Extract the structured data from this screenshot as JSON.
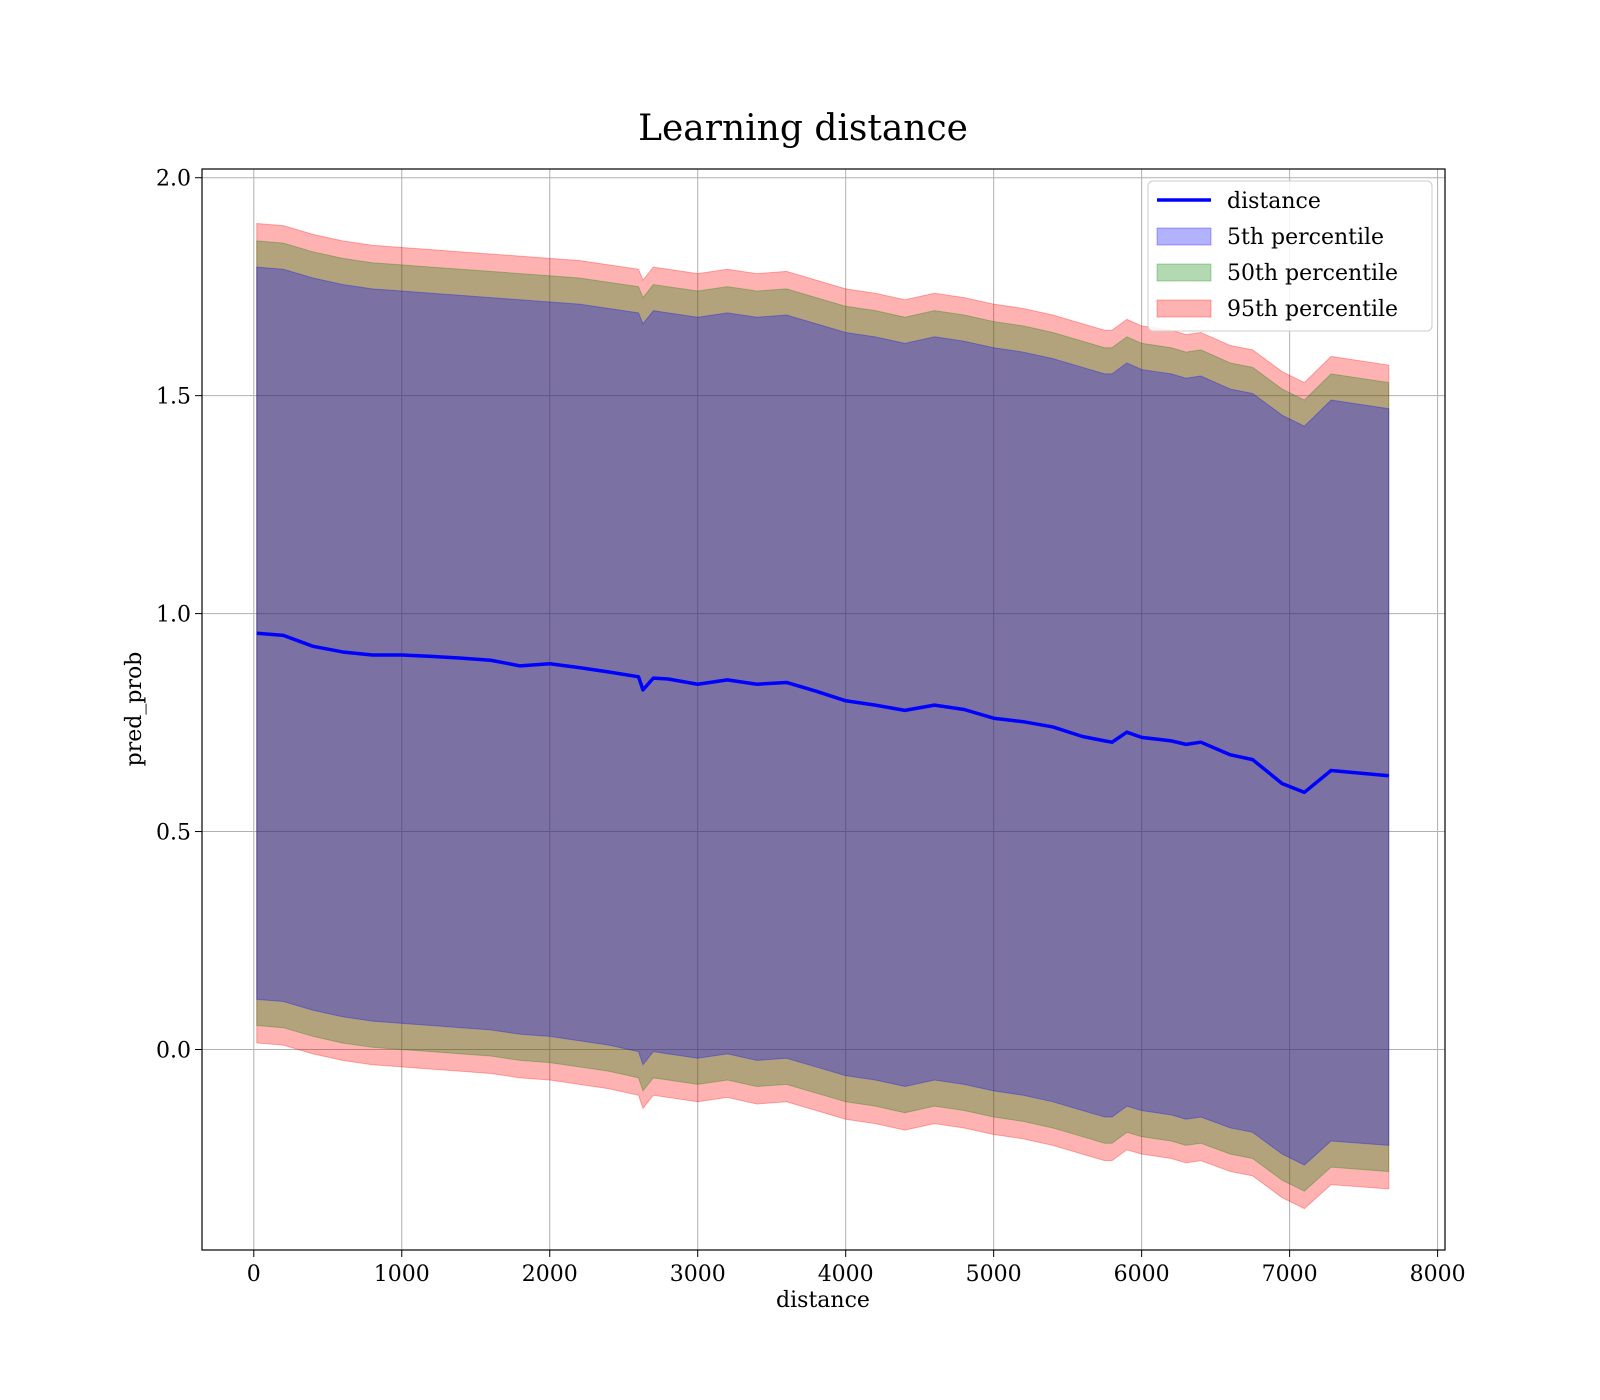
{
  "chart_data": {
    "type": "line",
    "title": "Learning distance",
    "xlabel": "distance",
    "ylabel": "pred_prob",
    "xlim": [
      -350,
      8050
    ],
    "ylim": [
      -0.46,
      2.02
    ],
    "xticks": [
      0,
      1000,
      2000,
      3000,
      4000,
      5000,
      6000,
      7000,
      8000
    ],
    "yticks": [
      0.0,
      0.5,
      1.0,
      1.5,
      2.0
    ],
    "xtick_labels": [
      "0",
      "1000",
      "2000",
      "3000",
      "4000",
      "5000",
      "6000",
      "7000",
      "8000"
    ],
    "ytick_labels": [
      "0.0",
      "0.5",
      "1.0",
      "1.5",
      "2.0"
    ],
    "grid": true,
    "legend_position": "top-right",
    "legend": [
      "distance",
      "5th percentile",
      "50th percentile",
      "95th percentile"
    ],
    "x": [
      20,
      200,
      400,
      600,
      800,
      1000,
      1200,
      1400,
      1600,
      1800,
      2000,
      2200,
      2400,
      2600,
      2630,
      2700,
      2800,
      3000,
      3200,
      3400,
      3600,
      3800,
      4000,
      4200,
      4400,
      4600,
      4800,
      5000,
      5200,
      5400,
      5600,
      5750,
      5800,
      5900,
      6000,
      6100,
      6200,
      6300,
      6400,
      6600,
      6750,
      6950,
      7100,
      7280,
      7670
    ],
    "series": [
      {
        "name": "distance",
        "color": "#0000ff",
        "values": [
          0.955,
          0.95,
          0.925,
          0.912,
          0.905,
          0.905,
          0.902,
          0.898,
          0.893,
          0.88,
          0.885,
          0.876,
          0.866,
          0.855,
          0.825,
          0.852,
          0.85,
          0.838,
          0.848,
          0.838,
          0.842,
          0.822,
          0.8,
          0.79,
          0.778,
          0.79,
          0.78,
          0.76,
          0.752,
          0.74,
          0.718,
          0.708,
          0.705,
          0.728,
          0.716,
          0.712,
          0.708,
          0.7,
          0.705,
          0.676,
          0.665,
          0.61,
          0.59,
          0.64,
          0.628
        ]
      },
      {
        "name": "5th percentile",
        "color": "#0000ff",
        "lower": [
          0.115,
          0.11,
          0.09,
          0.075,
          0.065,
          0.06,
          0.055,
          0.05,
          0.045,
          0.035,
          0.03,
          0.02,
          0.01,
          -0.005,
          -0.035,
          -0.005,
          -0.01,
          -0.02,
          -0.01,
          -0.025,
          -0.02,
          -0.04,
          -0.06,
          -0.07,
          -0.085,
          -0.07,
          -0.08,
          -0.095,
          -0.105,
          -0.12,
          -0.14,
          -0.155,
          -0.155,
          -0.13,
          -0.14,
          -0.145,
          -0.15,
          -0.16,
          -0.155,
          -0.18,
          -0.19,
          -0.24,
          -0.265,
          -0.21,
          -0.22
        ],
        "upper": [
          1.795,
          1.79,
          1.77,
          1.755,
          1.745,
          1.74,
          1.735,
          1.73,
          1.725,
          1.72,
          1.715,
          1.71,
          1.7,
          1.69,
          1.665,
          1.695,
          1.69,
          1.68,
          1.69,
          1.68,
          1.685,
          1.665,
          1.645,
          1.635,
          1.62,
          1.635,
          1.625,
          1.61,
          1.6,
          1.585,
          1.565,
          1.55,
          1.55,
          1.575,
          1.56,
          1.555,
          1.55,
          1.54,
          1.545,
          1.515,
          1.505,
          1.455,
          1.43,
          1.49,
          1.47
        ]
      },
      {
        "name": "50th percentile",
        "color": "#008000",
        "lower": [
          0.055,
          0.05,
          0.03,
          0.015,
          0.005,
          0.0,
          -0.005,
          -0.01,
          -0.015,
          -0.025,
          -0.03,
          -0.04,
          -0.05,
          -0.065,
          -0.095,
          -0.065,
          -0.07,
          -0.08,
          -0.07,
          -0.085,
          -0.08,
          -0.1,
          -0.12,
          -0.13,
          -0.145,
          -0.13,
          -0.14,
          -0.155,
          -0.165,
          -0.18,
          -0.2,
          -0.215,
          -0.215,
          -0.19,
          -0.2,
          -0.205,
          -0.21,
          -0.22,
          -0.215,
          -0.24,
          -0.25,
          -0.3,
          -0.325,
          -0.27,
          -0.28
        ],
        "upper": [
          1.855,
          1.85,
          1.83,
          1.815,
          1.805,
          1.8,
          1.795,
          1.79,
          1.785,
          1.78,
          1.775,
          1.77,
          1.76,
          1.75,
          1.725,
          1.755,
          1.75,
          1.74,
          1.75,
          1.74,
          1.745,
          1.725,
          1.705,
          1.695,
          1.68,
          1.695,
          1.685,
          1.67,
          1.66,
          1.645,
          1.625,
          1.61,
          1.61,
          1.635,
          1.62,
          1.615,
          1.61,
          1.6,
          1.605,
          1.575,
          1.565,
          1.515,
          1.49,
          1.55,
          1.53
        ]
      },
      {
        "name": "95th percentile",
        "color": "#ff0000",
        "lower": [
          0.015,
          0.01,
          -0.01,
          -0.025,
          -0.035,
          -0.04,
          -0.045,
          -0.05,
          -0.055,
          -0.065,
          -0.07,
          -0.08,
          -0.09,
          -0.105,
          -0.135,
          -0.105,
          -0.11,
          -0.12,
          -0.11,
          -0.125,
          -0.12,
          -0.14,
          -0.16,
          -0.17,
          -0.185,
          -0.17,
          -0.18,
          -0.195,
          -0.205,
          -0.22,
          -0.24,
          -0.255,
          -0.255,
          -0.23,
          -0.24,
          -0.245,
          -0.25,
          -0.26,
          -0.255,
          -0.28,
          -0.29,
          -0.34,
          -0.365,
          -0.31,
          -0.32
        ],
        "upper": [
          1.895,
          1.89,
          1.87,
          1.855,
          1.845,
          1.84,
          1.835,
          1.83,
          1.825,
          1.82,
          1.815,
          1.81,
          1.8,
          1.79,
          1.765,
          1.795,
          1.79,
          1.78,
          1.79,
          1.78,
          1.785,
          1.765,
          1.745,
          1.735,
          1.72,
          1.735,
          1.725,
          1.71,
          1.7,
          1.685,
          1.665,
          1.65,
          1.65,
          1.675,
          1.66,
          1.655,
          1.65,
          1.64,
          1.645,
          1.615,
          1.605,
          1.555,
          1.53,
          1.59,
          1.57
        ]
      }
    ]
  }
}
